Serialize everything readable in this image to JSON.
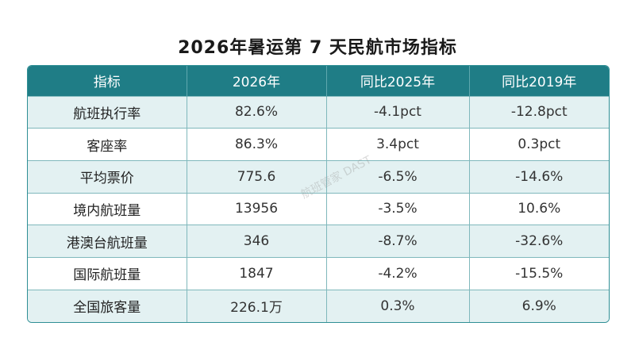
{
  "title": "2026年暑运第 7 天民航市场指标",
  "watermark": "航班管家 DAST",
  "chart_data": {
    "type": "table",
    "title": "2026年暑运第 7 天民航市场指标",
    "columns": [
      "指标",
      "2026年",
      "同比2025年",
      "同比2019年"
    ],
    "rows": [
      [
        "航班执行率",
        "82.6%",
        "-4.1pct",
        "-12.8pct"
      ],
      [
        "客座率",
        "86.3%",
        "3.4pct",
        "0.3pct"
      ],
      [
        "平均票价",
        "775.6",
        "-6.5%",
        "-14.6%"
      ],
      [
        "境内航班量",
        "13956",
        "-3.5%",
        "10.6%"
      ],
      [
        "港澳台航班量",
        "346",
        "-8.7%",
        "-32.6%"
      ],
      [
        "国际航班量",
        "1847",
        "-4.2%",
        "-15.5%"
      ],
      [
        "全国旅客量",
        "226.1万",
        "0.3%",
        "6.9%"
      ]
    ]
  },
  "colors": {
    "header_bg": "#1f7d86",
    "stripe_bg": "#e3f1f2",
    "border": "#7fb8bc"
  }
}
